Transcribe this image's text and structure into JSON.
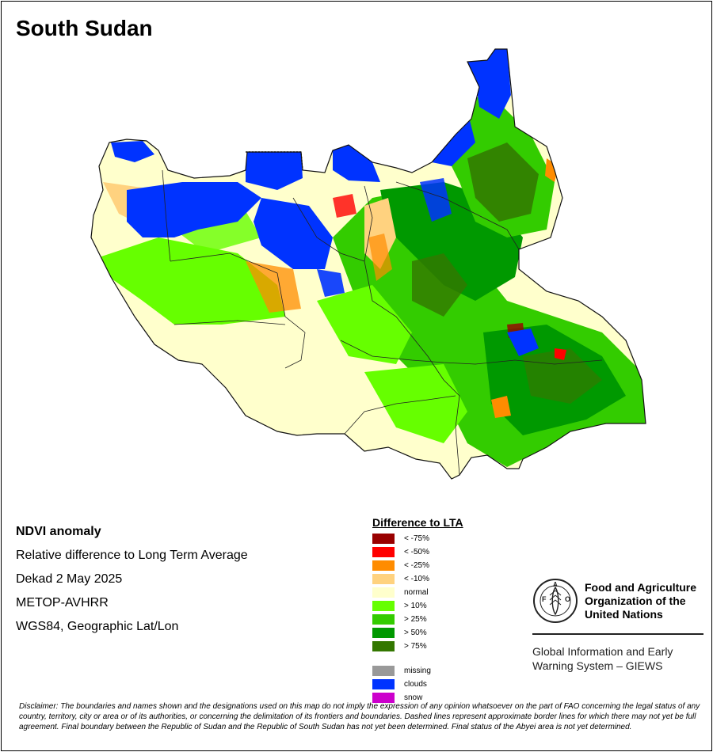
{
  "map": {
    "title": "South Sudan"
  },
  "info": {
    "heading": "NDVI anomaly",
    "line1": "Relative difference to Long Term Average",
    "line2": "Dekad 2 May 2025",
    "line3": "METOP-AVHRR",
    "line4": "WGS84, Geographic Lat/Lon"
  },
  "legend": {
    "title": "Difference to LTA",
    "classes": [
      {
        "label": "< -75%",
        "color": "#990000"
      },
      {
        "label": "< -50%",
        "color": "#ff0000"
      },
      {
        "label": "< -25%",
        "color": "#ff8c00"
      },
      {
        "label": "< -10%",
        "color": "#ffd27f"
      },
      {
        "label": "normal",
        "color": "#ffffcc"
      },
      {
        "label": "> 10%",
        "color": "#66ff00"
      },
      {
        "label": "> 25%",
        "color": "#33cc00"
      },
      {
        "label": "> 50%",
        "color": "#009900"
      },
      {
        "label": "> 75%",
        "color": "#337700"
      }
    ],
    "extra": [
      {
        "label": "missing",
        "color": "#999999"
      },
      {
        "label": "clouds",
        "color": "#0033ff"
      },
      {
        "label": "snow",
        "color": "#cc00cc"
      }
    ]
  },
  "organization": {
    "line1": "Food and Agriculture",
    "line2": "Organization of the",
    "line3": "United Nations",
    "logo_text": "FAO",
    "logo_motto": "FIAT PANIS",
    "system_line1": "Global Information and Early",
    "system_line2": "Warning System – GIEWS"
  },
  "disclaimer": "Disclaimer: The boundaries and names shown and the designations used on this map do not imply the expression of any opinion whatsoever on the part of FAO concerning the legal status of any country, territory, city or area or of its authorities, or concerning the delimitation of its frontiers and boundaries. Dashed lines represent approximate border lines for which there may not yet be full agreement.  Final boundary between the Republic of Sudan and the Republic of South Sudan has not yet been determined. Final status of the Abyei area is not yet determined."
}
